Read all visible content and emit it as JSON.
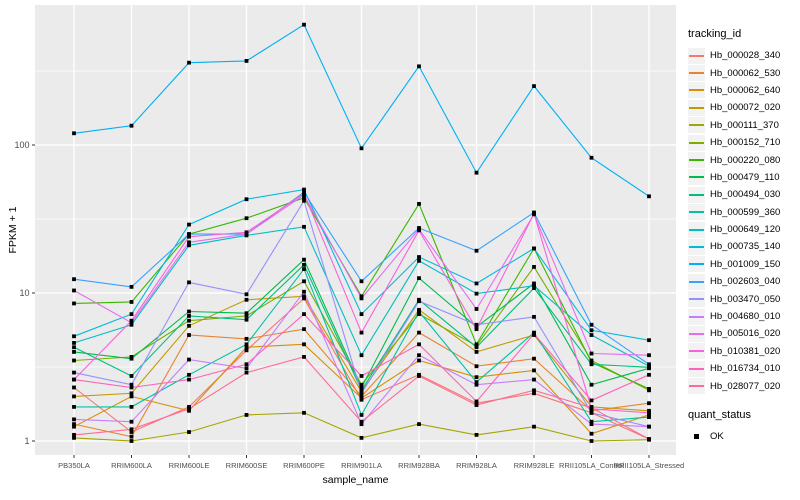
{
  "figure": {
    "background": "#FFFFFF",
    "panel_background": "#EBEBEB",
    "grid_color": "#FFFFFF",
    "tick_text_color": "#4D4D4D"
  },
  "chart_data": {
    "type": "line",
    "title": "",
    "xlabel": "sample_name",
    "ylabel": "FPKM + 1",
    "y_scale": "log10",
    "ylim": [
      0.85,
      880
    ],
    "y_ticks": [
      1,
      10,
      100
    ],
    "y_tick_labels": [
      "1",
      "10",
      "100"
    ],
    "y_minor_ticks": [
      3.162,
      31.62,
      316.2
    ],
    "grid": true,
    "legend_position": "right",
    "point_shape": "filled-square",
    "point_color": "#000000",
    "categories": [
      "PB350LA",
      "RRIM600LA",
      "RRIM600LE",
      "RRIM600SE",
      "RRIM600PE",
      "RRIM901LA",
      "RRIM928BA",
      "RRIM928LA",
      "RRIM928LE",
      "RRII105LA_Control",
      "RRII105LA_Stressed"
    ],
    "series": [
      {
        "name": "Hb_000028_340",
        "color": "#F8766D",
        "values": [
          2.3,
          1.15,
          1.7,
          4.1,
          9.2,
          1.9,
          2.8,
          1.8,
          2.1,
          1.55,
          1.03
        ]
      },
      {
        "name": "Hb_000062_530",
        "color": "#EA8331",
        "values": [
          1.3,
          1.07,
          5.2,
          4.9,
          5.7,
          2.0,
          5.4,
          3.2,
          3.6,
          1.6,
          1.8
        ]
      },
      {
        "name": "Hb_000062_640",
        "color": "#D89000",
        "values": [
          1.25,
          2.0,
          1.6,
          4.3,
          4.5,
          1.95,
          3.5,
          2.7,
          3.0,
          1.12,
          1.5
        ]
      },
      {
        "name": "Hb_000072_020",
        "color": "#C09B00",
        "values": [
          2.0,
          2.1,
          6.0,
          9.0,
          9.5,
          2.15,
          7.7,
          4.0,
          5.2,
          1.7,
          1.6
        ]
      },
      {
        "name": "Hb_000111_370",
        "color": "#A3A500",
        "values": [
          1.05,
          1.0,
          1.15,
          1.5,
          1.55,
          1.05,
          1.3,
          1.1,
          1.25,
          1.0,
          1.02
        ]
      },
      {
        "name": "Hb_000152_710",
        "color": "#7CAE00",
        "values": [
          3.5,
          3.7,
          6.5,
          7.0,
          12.0,
          2.4,
          7.2,
          4.4,
          15.0,
          3.5,
          2.2
        ]
      },
      {
        "name": "Hb_000220_080",
        "color": "#39B600",
        "values": [
          8.5,
          8.7,
          25.0,
          32.0,
          44.0,
          9.5,
          40.0,
          4.5,
          20.0,
          3.4,
          2.25
        ]
      },
      {
        "name": "Hb_000479_110",
        "color": "#00BB4E",
        "values": [
          4.0,
          3.6,
          7.5,
          7.3,
          16.8,
          2.3,
          12.6,
          5.9,
          11.6,
          2.4,
          3.1
        ]
      },
      {
        "name": "Hb_000494_030",
        "color": "#00BF7D",
        "values": [
          4.3,
          2.75,
          7.0,
          6.6,
          15.5,
          2.2,
          9.0,
          4.3,
          10.8,
          3.3,
          3.15
        ]
      },
      {
        "name": "Hb_000599_360",
        "color": "#00C1A3",
        "values": [
          1.7,
          1.7,
          2.8,
          4.5,
          14.5,
          1.5,
          7.5,
          2.5,
          5.4,
          1.35,
          1.45
        ]
      },
      {
        "name": "Hb_000649_120",
        "color": "#00BFC4",
        "values": [
          4.6,
          6.1,
          21.0,
          24.5,
          28.0,
          3.8,
          16.5,
          9.9,
          11.2,
          5.2,
          3.2
        ]
      },
      {
        "name": "Hb_000735_140",
        "color": "#00BAE0",
        "values": [
          5.1,
          7.2,
          29.0,
          43.0,
          50.0,
          7.2,
          17.5,
          11.6,
          20.0,
          5.6,
          4.8
        ]
      },
      {
        "name": "Hb_001009_150",
        "color": "#00B0F6",
        "values": [
          120,
          135,
          360,
          370,
          650,
          95,
          340,
          65,
          250,
          82,
          45
        ]
      },
      {
        "name": "Hb_002603_040",
        "color": "#35A2FF",
        "values": [
          12.4,
          11.0,
          25.0,
          25.0,
          48.0,
          12.0,
          27.5,
          19.3,
          35.0,
          6.1,
          3.3
        ]
      },
      {
        "name": "Hb_003470_050",
        "color": "#9590FF",
        "values": [
          2.9,
          2.4,
          11.8,
          9.8,
          42.0,
          2.1,
          8.8,
          6.1,
          6.9,
          1.55,
          1.25
        ]
      },
      {
        "name": "Hb_004680_010",
        "color": "#C77CFF",
        "values": [
          1.4,
          1.35,
          3.55,
          3.1,
          10.2,
          1.3,
          3.8,
          2.4,
          2.6,
          1.3,
          1.25
        ]
      },
      {
        "name": "Hb_005016_020",
        "color": "#E76BF3",
        "values": [
          10.4,
          6.3,
          22.0,
          25.0,
          46.0,
          9.2,
          27.0,
          7.8,
          34.0,
          3.9,
          3.8
        ]
      },
      {
        "name": "Hb_010381_020",
        "color": "#FA62DB",
        "values": [
          2.6,
          6.5,
          24.0,
          25.7,
          47.0,
          5.4,
          26.5,
          5.7,
          34.5,
          1.65,
          1.55
        ]
      },
      {
        "name": "Hb_016734_010",
        "color": "#FF62BC",
        "values": [
          2.6,
          2.3,
          2.6,
          3.3,
          7.2,
          2.75,
          4.5,
          1.85,
          5.3,
          1.88,
          2.8
        ]
      },
      {
        "name": "Hb_028077_020",
        "color": "#FF6A98",
        "values": [
          1.1,
          1.2,
          1.65,
          2.9,
          3.7,
          1.35,
          2.75,
          1.75,
          2.2,
          1.68,
          1.03
        ]
      }
    ]
  },
  "legend": {
    "tracking_title": "tracking_id",
    "quant_title": "quant_status",
    "quant_items": [
      {
        "label": "OK",
        "shape": "filled-square",
        "color": "#000000"
      }
    ]
  }
}
